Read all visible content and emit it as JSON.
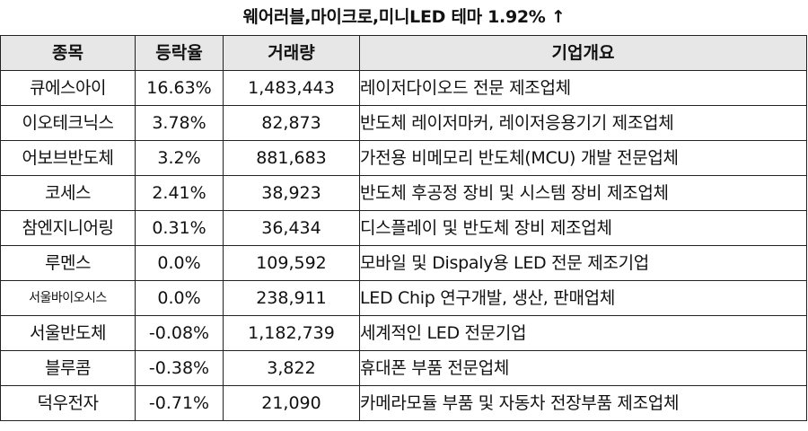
{
  "title": "웨어러블,마이크로,미니LED 테마 1.92% ↑",
  "table": {
    "headers": [
      "종목",
      "등락율",
      "거래량",
      "기업개요"
    ],
    "rows": [
      {
        "name": "큐에스아이",
        "rate": "16.63%",
        "volume": "1,483,443",
        "desc": "레이저다이오드 전문 제조업체"
      },
      {
        "name": "이오테크닉스",
        "rate": "3.78%",
        "volume": "82,873",
        "desc": "반도체 레이저마커, 레이저응용기기 제조업체"
      },
      {
        "name": "어보브반도체",
        "rate": "3.2%",
        "volume": "881,683",
        "desc": "가전용 비메모리 반도체(MCU) 개발 전문업체"
      },
      {
        "name": "코세스",
        "rate": "2.41%",
        "volume": "38,923",
        "desc": "반도체 후공정 장비 및 시스템 장비 제조업체"
      },
      {
        "name": "참엔지니어링",
        "rate": "0.31%",
        "volume": "36,434",
        "desc": "디스플레이 및 반도체 장비 제조업체"
      },
      {
        "name": "루멘스",
        "rate": "0.0%",
        "volume": "109,592",
        "desc": "모바일 및 Dispaly용 LED 전문 제조기업"
      },
      {
        "name": "서울바이오시스",
        "rate": "0.0%",
        "volume": "238,911",
        "desc": "LED Chip 연구개발, 생산, 판매업체"
      },
      {
        "name": "서울반도체",
        "rate": "-0.08%",
        "volume": "1,182,739",
        "desc": "세계적인 LED 전문기업"
      },
      {
        "name": "블루콤",
        "rate": "-0.38%",
        "volume": "3,822",
        "desc": "휴대폰 부품 전문업체"
      },
      {
        "name": "덕우전자",
        "rate": "-0.71%",
        "volume": "21,090",
        "desc": "카메라모듈 부품 및 자동차 전장부품 제조업체"
      }
    ]
  }
}
